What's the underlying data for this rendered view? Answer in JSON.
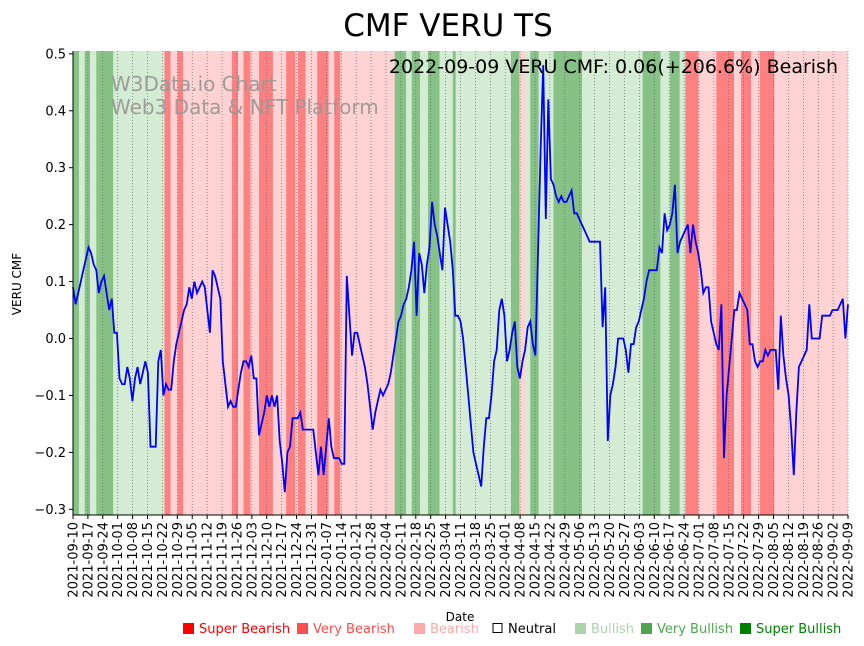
{
  "chart_data": {
    "type": "line",
    "title": "CMF VERU TS",
    "subtitle": "2022-09-09 VERU CMF: 0.06(+206.6%) Bearish",
    "watermark": [
      "W3Data.io Chart",
      "Web3 Data & NFT Platform"
    ],
    "xlabel": "Date",
    "ylabel": "VERU CMF",
    "ylim": [
      -0.31,
      0.505
    ],
    "yticks": [
      -0.3,
      -0.2,
      -0.1,
      0.0,
      0.1,
      0.2,
      0.3,
      0.4,
      0.5
    ],
    "ytick_labels": [
      "−0.3",
      "−0.2",
      "−0.1",
      "0.0",
      "0.1",
      "0.2",
      "0.3",
      "0.4",
      "0.5"
    ],
    "x_start": "2021-09-10",
    "x_end": "2022-09-09",
    "xtick_labels": [
      "2021-09-10",
      "2021-09-17",
      "2021-09-24",
      "2021-10-01",
      "2021-10-08",
      "2021-10-15",
      "2021-10-22",
      "2021-10-29",
      "2021-11-05",
      "2021-11-12",
      "2021-11-19",
      "2021-11-26",
      "2021-12-03",
      "2021-12-10",
      "2021-12-17",
      "2021-12-24",
      "2021-12-31",
      "2022-01-07",
      "2022-01-14",
      "2022-01-21",
      "2022-01-28",
      "2022-02-04",
      "2022-02-11",
      "2022-02-18",
      "2022-02-25",
      "2022-03-04",
      "2022-03-11",
      "2022-03-18",
      "2022-03-25",
      "2022-04-01",
      "2022-04-08",
      "2022-04-15",
      "2022-04-22",
      "2022-04-29",
      "2022-05-06",
      "2022-05-13",
      "2022-05-20",
      "2022-05-27",
      "2022-06-03",
      "2022-06-10",
      "2022-06-17",
      "2022-06-24",
      "2022-07-01",
      "2022-07-08",
      "2022-07-15",
      "2022-07-22",
      "2022-07-29",
      "2022-08-05",
      "2022-08-12",
      "2022-08-19",
      "2022-08-26",
      "2022-09-02",
      "2022-09-09"
    ],
    "series": [
      {
        "name": "VERU CMF",
        "color": "#0000ff",
        "values": [
          0.09,
          0.06,
          0.08,
          0.1,
          0.12,
          0.14,
          0.16,
          0.15,
          0.13,
          0.12,
          0.08,
          0.1,
          0.11,
          0.08,
          0.05,
          0.07,
          0.01,
          0.01,
          -0.07,
          -0.08,
          -0.08,
          -0.05,
          -0.07,
          -0.11,
          -0.07,
          -0.05,
          -0.08,
          -0.06,
          -0.04,
          -0.06,
          -0.19,
          -0.19,
          -0.19,
          -0.04,
          -0.02,
          -0.1,
          -0.08,
          -0.09,
          -0.09,
          -0.04,
          -0.01,
          0.01,
          0.03,
          0.05,
          0.06,
          0.09,
          0.07,
          0.1,
          0.08,
          0.09,
          0.1,
          0.09,
          0.05,
          0.01,
          0.12,
          0.11,
          0.09,
          0.07,
          -0.04,
          -0.08,
          -0.12,
          -0.11,
          -0.12,
          -0.12,
          -0.09,
          -0.06,
          -0.04,
          -0.04,
          -0.05,
          -0.03,
          -0.07,
          -0.07,
          -0.17,
          -0.15,
          -0.13,
          -0.1,
          -0.12,
          -0.1,
          -0.12,
          -0.1,
          -0.18,
          -0.22,
          -0.27,
          -0.2,
          -0.19,
          -0.14,
          -0.14,
          -0.14,
          -0.13,
          -0.16,
          -0.16,
          -0.16,
          -0.16,
          -0.16,
          -0.2,
          -0.24,
          -0.19,
          -0.24,
          -0.19,
          -0.14,
          -0.19,
          -0.21,
          -0.21,
          -0.21,
          -0.22,
          -0.22,
          0.11,
          0.04,
          -0.03,
          0.01,
          0.01,
          -0.01,
          -0.03,
          -0.05,
          -0.08,
          -0.12,
          -0.16,
          -0.13,
          -0.11,
          -0.09,
          -0.1,
          -0.09,
          -0.08,
          -0.06,
          -0.03,
          0.0,
          0.03,
          0.04,
          0.06,
          0.07,
          0.09,
          0.12,
          0.17,
          0.04,
          0.15,
          0.13,
          0.08,
          0.13,
          0.16,
          0.24,
          0.2,
          0.18,
          0.15,
          0.12,
          0.23,
          0.2,
          0.17,
          0.12,
          0.04,
          0.04,
          0.03,
          0.0,
          -0.05,
          -0.1,
          -0.15,
          -0.2,
          -0.22,
          -0.24,
          -0.26,
          -0.19,
          -0.14,
          -0.14,
          -0.1,
          -0.04,
          -0.02,
          0.05,
          0.07,
          0.04,
          -0.04,
          -0.02,
          0.01,
          0.03,
          -0.05,
          -0.07,
          -0.04,
          -0.02,
          0.02,
          0.03,
          -0.01,
          -0.03,
          0.15,
          0.33,
          0.48,
          0.21,
          0.42,
          0.28,
          0.27,
          0.25,
          0.24,
          0.25,
          0.24,
          0.24,
          0.25,
          0.26,
          0.22,
          0.22,
          0.21,
          0.2,
          0.19,
          0.18,
          0.17,
          0.17,
          0.17,
          0.17,
          0.17,
          0.02,
          0.09,
          -0.18,
          -0.1,
          -0.08,
          -0.05,
          0.0,
          0.0,
          0.0,
          -0.02,
          -0.06,
          -0.01,
          -0.01,
          0.02,
          0.03,
          0.05,
          0.07,
          0.1,
          0.12,
          0.12,
          0.12,
          0.12,
          0.16,
          0.15,
          0.22,
          0.19,
          0.2,
          0.22,
          0.27,
          0.15,
          0.17,
          0.18,
          0.19,
          0.2,
          0.15,
          0.2,
          0.17,
          0.15,
          0.12,
          0.08,
          0.09,
          0.09,
          0.03,
          0.01,
          -0.01,
          -0.02,
          0.06,
          -0.21,
          -0.1,
          -0.05,
          0.0,
          0.05,
          0.05,
          0.08,
          0.07,
          0.06,
          0.05,
          -0.01,
          -0.01,
          -0.04,
          -0.05,
          -0.04,
          -0.04,
          -0.02,
          -0.03,
          -0.02,
          -0.02,
          -0.02,
          -0.09,
          0.04,
          -0.03,
          -0.07,
          -0.1,
          -0.16,
          -0.24,
          -0.13,
          -0.05,
          -0.04,
          -0.03,
          -0.02,
          0.06,
          0.0,
          0.0,
          0.0,
          0.0,
          0.04,
          0.04,
          0.04,
          0.04,
          0.05,
          0.05,
          0.05,
          0.06,
          0.07,
          0.0,
          0.06
        ]
      }
    ],
    "bands": [
      {
        "from": 0.0,
        "to": 0.008,
        "level": "very_bullish"
      },
      {
        "from": 0.008,
        "to": 0.015,
        "level": "bullish"
      },
      {
        "from": 0.015,
        "to": 0.022,
        "level": "very_bullish"
      },
      {
        "from": 0.022,
        "to": 0.03,
        "level": "bullish"
      },
      {
        "from": 0.03,
        "to": 0.033,
        "level": "very_bullish"
      },
      {
        "from": 0.033,
        "to": 0.046,
        "level": "very_bullish"
      },
      {
        "from": 0.046,
        "to": 0.055,
        "level": "bullish"
      },
      {
        "from": 0.055,
        "to": 0.051,
        "level": "bullish"
      },
      {
        "from": 0.043,
        "to": 0.052,
        "level": "very_bullish"
      },
      {
        "from": 0.052,
        "to": 0.118,
        "level": "bullish"
      },
      {
        "from": 0.118,
        "to": 0.126,
        "level": "very_bearish"
      },
      {
        "from": 0.126,
        "to": 0.135,
        "level": "bearish"
      },
      {
        "from": 0.135,
        "to": 0.142,
        "level": "very_bearish"
      },
      {
        "from": 0.142,
        "to": 0.205,
        "level": "bearish"
      },
      {
        "from": 0.205,
        "to": 0.213,
        "level": "very_bearish"
      },
      {
        "from": 0.213,
        "to": 0.22,
        "level": "bearish"
      },
      {
        "from": 0.22,
        "to": 0.229,
        "level": "very_bearish"
      },
      {
        "from": 0.229,
        "to": 0.24,
        "level": "bearish"
      },
      {
        "from": 0.24,
        "to": 0.258,
        "level": "very_bearish"
      },
      {
        "from": 0.258,
        "to": 0.275,
        "level": "bearish"
      },
      {
        "from": 0.275,
        "to": 0.287,
        "level": "very_bearish"
      },
      {
        "from": 0.287,
        "to": 0.29,
        "level": "bearish"
      },
      {
        "from": 0.29,
        "to": 0.3,
        "level": "very_bearish"
      },
      {
        "from": 0.3,
        "to": 0.315,
        "level": "bearish"
      },
      {
        "from": 0.315,
        "to": 0.33,
        "level": "very_bearish"
      },
      {
        "from": 0.33,
        "to": 0.337,
        "level": "bearish"
      },
      {
        "from": 0.337,
        "to": 0.345,
        "level": "very_bearish"
      },
      {
        "from": 0.345,
        "to": 0.415,
        "level": "bearish"
      },
      {
        "from": 0.415,
        "to": 0.43,
        "level": "very_bullish"
      },
      {
        "from": 0.43,
        "to": 0.437,
        "level": "bullish"
      },
      {
        "from": 0.437,
        "to": 0.448,
        "level": "very_bullish"
      },
      {
        "from": 0.448,
        "to": 0.458,
        "level": "bullish"
      },
      {
        "from": 0.458,
        "to": 0.473,
        "level": "very_bullish"
      },
      {
        "from": 0.473,
        "to": 0.49,
        "level": "bullish"
      },
      {
        "from": 0.49,
        "to": 0.494,
        "level": "very_bullish"
      },
      {
        "from": 0.494,
        "to": 0.565,
        "level": "bullish"
      },
      {
        "from": 0.565,
        "to": 0.576,
        "level": "very_bullish"
      },
      {
        "from": 0.576,
        "to": 0.584,
        "level": "bearish"
      },
      {
        "from": 0.584,
        "to": 0.59,
        "level": "bullish"
      },
      {
        "from": 0.59,
        "to": 0.601,
        "level": "very_bullish"
      },
      {
        "from": 0.601,
        "to": 0.62,
        "level": "bullish"
      },
      {
        "from": 0.62,
        "to": 0.657,
        "level": "very_bullish"
      },
      {
        "from": 0.657,
        "to": 0.735,
        "level": "bullish"
      },
      {
        "from": 0.735,
        "to": 0.758,
        "level": "very_bullish"
      },
      {
        "from": 0.758,
        "to": 0.77,
        "level": "bullish"
      },
      {
        "from": 0.77,
        "to": 0.783,
        "level": "very_bullish"
      },
      {
        "from": 0.783,
        "to": 0.79,
        "level": "bullish"
      },
      {
        "from": 0.79,
        "to": 0.807,
        "level": "very_bearish"
      },
      {
        "from": 0.807,
        "to": 0.83,
        "level": "bearish"
      },
      {
        "from": 0.83,
        "to": 0.853,
        "level": "very_bearish"
      },
      {
        "from": 0.853,
        "to": 0.862,
        "level": "bearish"
      },
      {
        "from": 0.862,
        "to": 0.875,
        "level": "very_bearish"
      },
      {
        "from": 0.875,
        "to": 0.886,
        "level": "bearish"
      },
      {
        "from": 0.886,
        "to": 0.905,
        "level": "very_bearish"
      },
      {
        "from": 0.905,
        "to": 0.94,
        "level": "bearish"
      },
      {
        "from": 0.94,
        "to": 1.0,
        "level": "bearish"
      }
    ],
    "band_colors": {
      "super_bearish": "#ff0000",
      "very_bearish": "#ff8080",
      "bearish": "#ffd3d3",
      "neutral": "#ffffff",
      "bullish": "#d4ecd4",
      "very_bullish": "#86c286",
      "super_bullish": "#008000"
    },
    "legend_position": "bottom",
    "legend": [
      {
        "label": "Super Bearish",
        "color": "#ff0000"
      },
      {
        "label": "Very Bearish",
        "color": "#ff4d4d"
      },
      {
        "label": "Bearish",
        "color": "#ffaaaa"
      },
      {
        "label": "Neutral",
        "color": "#000000"
      },
      {
        "label": "Bullish",
        "color": "#aad4aa"
      },
      {
        "label": "Very Bullish",
        "color": "#4da64d"
      },
      {
        "label": "Super Bullish",
        "color": "#008000"
      }
    ]
  }
}
